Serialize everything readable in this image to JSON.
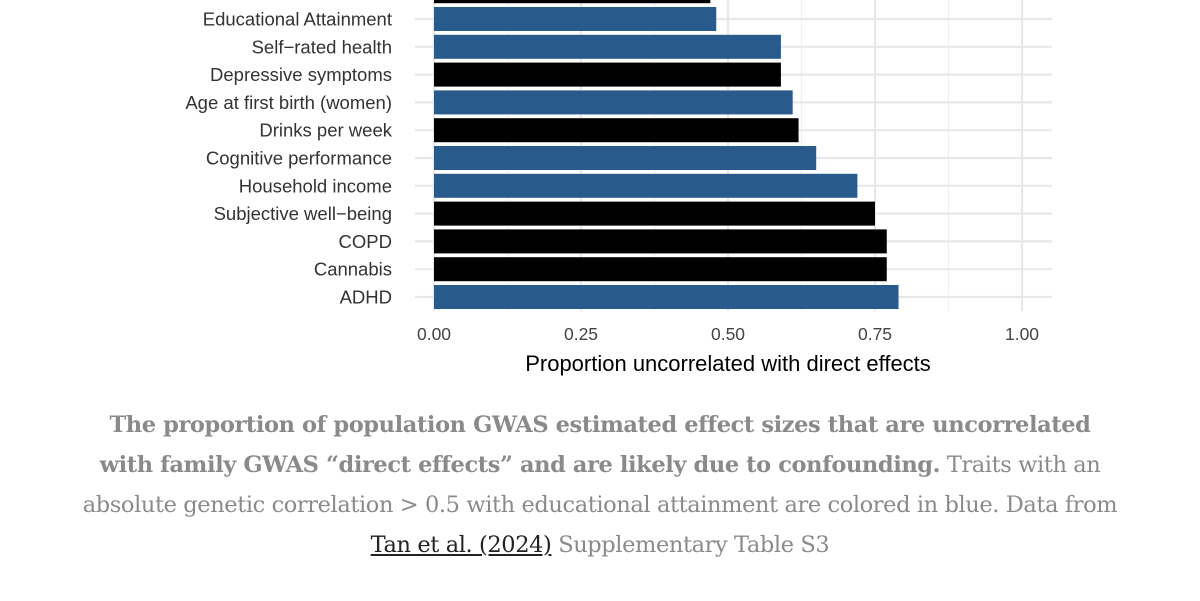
{
  "chart_data": {
    "type": "bar",
    "orientation": "horizontal",
    "xlabel": "Proportion uncorrelated with direct effects",
    "xlim": [
      0,
      1.05
    ],
    "xticks": [
      "0.00",
      "0.25",
      "0.50",
      "0.75",
      "1.00"
    ],
    "grid": true,
    "categories": [
      "",
      "Educational Attainment",
      "Self−rated health",
      "Depressive symptoms",
      "Age at first birth (women)",
      "Drinks per week",
      "Cognitive performance",
      "Household income",
      "Subjective well−being",
      "COPD",
      "Cannabis",
      "ADHD"
    ],
    "values": [
      0.47,
      0.48,
      0.59,
      0.59,
      0.61,
      0.62,
      0.65,
      0.72,
      0.75,
      0.77,
      0.77,
      0.79
    ],
    "groups": [
      "other",
      "edu",
      "edu",
      "other",
      "edu",
      "other",
      "edu",
      "edu",
      "other",
      "other",
      "other",
      "edu"
    ],
    "colors": {
      "edu": "#285a8c",
      "other": "#000000"
    }
  },
  "caption": {
    "bold": "The proportion of population GWAS estimated effect sizes that are uncorrelated with family GWAS “direct effects” and are likely due to confounding.",
    "text1": " Traits with an absolute genetic correlation > 0.5 with educational attainment are colored in blue. Data from ",
    "link": "Tan et al. (2024)",
    "text2": " Supplementary Table S3"
  }
}
